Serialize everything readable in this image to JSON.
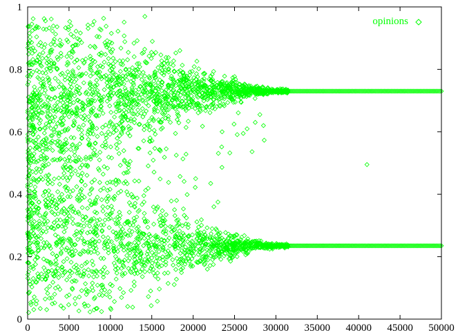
{
  "chart_data": {
    "type": "scatter",
    "title": "",
    "xlabel": "",
    "ylabel": "",
    "xlim": [
      0,
      50000
    ],
    "ylim": [
      0,
      1
    ],
    "x_ticks": [
      "0",
      "5000",
      "10000",
      "15000",
      "20000",
      "25000",
      "30000",
      "35000",
      "40000",
      "45000",
      "50000"
    ],
    "y_ticks": [
      "0",
      "0.2",
      "0.4",
      "0.6",
      "0.8",
      "1"
    ],
    "grid": false,
    "legend_position": "top-right",
    "marker": "diamond-open",
    "series": [
      {
        "name": "opinions",
        "color": "#00ff00",
        "description_of_shape": "two converging clusters",
        "cluster_upper_final": 0.73,
        "cluster_lower_final": 0.235,
        "initial_range": [
          0,
          1
        ],
        "convergence_x": 30000,
        "outliers": [
          {
            "x": 41000,
            "y": 0.495
          },
          {
            "x": 23500,
            "y": 0.6
          },
          {
            "x": 27500,
            "y": 0.63
          },
          {
            "x": 28500,
            "y": 0.62
          },
          {
            "x": 20300,
            "y": 0.45
          },
          {
            "x": 22500,
            "y": 0.36
          },
          {
            "x": 23000,
            "y": 0.375
          },
          {
            "x": 18000,
            "y": 0.38
          }
        ]
      }
    ]
  }
}
